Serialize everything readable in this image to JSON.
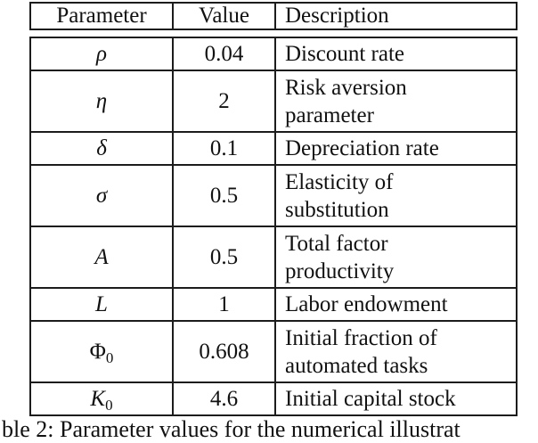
{
  "table": {
    "type": "table",
    "headers": {
      "param": "Parameter",
      "value": "Value",
      "desc": "Description"
    },
    "rows": [
      {
        "param": "ρ",
        "value": "0.04",
        "desc": [
          "Discount rate"
        ]
      },
      {
        "param": "η",
        "value": "2",
        "desc": [
          "Risk aversion",
          "parameter"
        ]
      },
      {
        "param": "δ",
        "value": "0.1",
        "desc": [
          "Depreciation rate"
        ]
      },
      {
        "param": "σ",
        "value": "0.5",
        "desc": [
          "Elasticity of",
          "substitution"
        ]
      },
      {
        "param": "A",
        "value": "0.5",
        "desc": [
          "Total factor",
          "productivity"
        ]
      },
      {
        "param": "L",
        "value": "1",
        "desc": [
          "Labor endowment"
        ]
      },
      {
        "param": "Φ",
        "sub": "0",
        "value": "0.608",
        "desc": [
          "Initial fraction of",
          "automated tasks"
        ]
      },
      {
        "param": "K",
        "sub": "0",
        "value": "4.6",
        "desc": [
          "Initial capital stock"
        ]
      }
    ]
  },
  "caption": {
    "visible_fragment": "ble 2: Parameter values for the numerical illustrat"
  },
  "colors": {
    "background": "#ffffff",
    "text": "#111111",
    "rule": "#1c1c1c"
  }
}
